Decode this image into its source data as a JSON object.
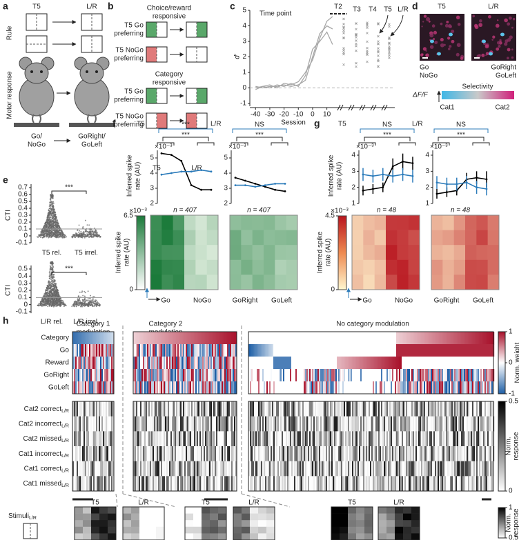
{
  "panels": {
    "a": {
      "label": "a",
      "columns": [
        "T5",
        "L/R"
      ],
      "rows": [
        "Rule",
        "Motor response"
      ],
      "left_response": [
        "Go/",
        "NoGo"
      ],
      "right_response": [
        "GoRight/",
        "GoLeft"
      ]
    },
    "b": {
      "label": "b",
      "groups": [
        {
          "title": [
            "Choice/reward",
            "responsive"
          ],
          "rows": [
            [
              "T5 Go",
              "preferring"
            ],
            [
              "T5 NoGo",
              "preferring"
            ]
          ]
        },
        {
          "title": [
            "Category",
            "responsive"
          ],
          "rows": [
            [
              "T5 Go",
              "preferring"
            ],
            [
              "T5 NoGo",
              "preferring"
            ]
          ]
        }
      ],
      "columns": [
        "T5",
        "L/R"
      ]
    },
    "c": {
      "type": "line",
      "label": "c",
      "annotation": "Time point",
      "time_points": [
        "T2",
        "T3",
        "T4",
        "T5",
        "L/R"
      ],
      "xlabel": "Session",
      "ylabel": "d′",
      "color": "#a8a8a8",
      "x": [
        -40,
        -35,
        -30,
        -25,
        -20,
        -15,
        -10,
        -5,
        0,
        5,
        10,
        14
      ],
      "series": [
        {
          "values": [
            0.1,
            0,
            0.1,
            0.1,
            0.2,
            0.1,
            0.2,
            0.5,
            2.0,
            3.5,
            4.0,
            3.8
          ]
        },
        {
          "values": [
            0,
            0.1,
            0,
            0.2,
            0.1,
            0.3,
            0.1,
            0.8,
            2.5,
            3.0,
            3.6,
            2.8
          ]
        },
        {
          "values": [
            -0.1,
            0.1,
            0.2,
            0,
            0.3,
            0.2,
            0.4,
            1.0,
            1.8,
            3.2,
            4.3,
            4.6
          ]
        }
      ],
      "xlim": [
        -44,
        16
      ],
      "ylim": [
        -1,
        5
      ],
      "xticks": [
        -40,
        -30,
        -20,
        -10,
        0,
        10
      ],
      "yticks": [
        -1,
        0,
        1,
        2,
        3,
        4,
        5
      ]
    },
    "d": {
      "label": "d",
      "images": [
        "T5",
        "L/R"
      ],
      "left_labels": [
        "Go",
        "NoGo"
      ],
      "right_labels": [
        "GoRight",
        "GoLeft"
      ],
      "colorbar_title": "Selectivity",
      "colorbar_axis": "ΔF/F",
      "colorbar_ends": [
        "Cat1",
        "Cat2"
      ]
    },
    "e": {
      "label": "e",
      "plots": [
        {
          "ylabel": "CTI",
          "ylim": [
            -0.1,
            0.75
          ],
          "yticks": [
            -0.1,
            0,
            0.1,
            0.2,
            0.3,
            0.4,
            0.5,
            0.6,
            0.7
          ],
          "significance": "***",
          "categories": [
            "T5 rel.",
            "T5 irrel."
          ]
        },
        {
          "ylabel": "CTI",
          "ylim": [
            -0.12,
            0.55
          ],
          "yticks": [
            -0.1,
            0,
            0.1,
            0.2,
            0.3,
            0.4,
            0.5
          ],
          "significance": "***",
          "categories": [
            "L/R rel.",
            "L/R irrel."
          ]
        }
      ]
    },
    "f": {
      "label": "f",
      "ylabel": [
        "Inferred spike",
        "rate (AU)"
      ],
      "colorbar": {
        "lim": [
          0,
          6.5
        ],
        "ticks": [
          0,
          6.5
        ],
        "multiplier": "×10⁻³",
        "label": [
          "Inferred spike",
          "rate (AU)"
        ],
        "color": "#1b7a3a"
      },
      "plots": [
        {
          "title": "T5",
          "significance": [
            "***",
            "***"
          ],
          "multiplier": "×10⁻³",
          "ylim": [
            2,
            5.5
          ],
          "yticks": [
            2,
            3,
            4,
            5
          ],
          "n": "n = 407",
          "heatmap_labels": [
            "Go",
            "NoGo"
          ],
          "series": [
            {
              "color": "#000000",
              "values": [
                5.3,
                5.2,
                4.8,
                3.2,
                2.9,
                2.9
              ]
            },
            {
              "color": "#2b7bba",
              "values": [
                3.9,
                4.0,
                4.1,
                4.1,
                4.2,
                4.1
              ]
            }
          ]
        },
        {
          "title": "L/R",
          "significance": [
            "NS",
            "***"
          ],
          "multiplier": "×10⁻³",
          "ylim": [
            2,
            5.5
          ],
          "yticks": [
            2,
            3,
            4,
            5
          ],
          "n": "n = 407",
          "heatmap_labels": [
            "GoRight",
            "GoLeft"
          ],
          "series": [
            {
              "color": "#000000",
              "values": [
                3.7,
                3.5,
                3.3,
                3.1,
                2.9,
                2.8
              ]
            },
            {
              "color": "#2b7bba",
              "values": [
                3.2,
                3.2,
                3.1,
                3.2,
                3.3,
                3.3
              ]
            }
          ]
        }
      ]
    },
    "g": {
      "label": "g",
      "ylabel": [
        "Inferred spike",
        "rate (AU)"
      ],
      "colorbar": {
        "lim": [
          0,
          4.5
        ],
        "ticks": [
          0,
          4.5
        ],
        "multiplier": "×10⁻³",
        "label": [
          "Inferred spike",
          "rate (AU)"
        ],
        "color": "#b8141e"
      },
      "plots": [
        {
          "title": "T5",
          "significance": [
            "NS",
            "***"
          ],
          "multiplier": "×10⁻³",
          "ylim": [
            1,
            4.3
          ],
          "yticks": [
            1,
            2,
            3,
            4
          ],
          "n": "n = 48",
          "heatmap_labels": [
            "Go",
            "NoGo"
          ],
          "series": [
            {
              "color": "#000000",
              "values": [
                1.8,
                1.9,
                2.0,
                3.3,
                3.6,
                3.5
              ],
              "errors": [
                0.3,
                0.3,
                0.3,
                0.5,
                0.5,
                0.4
              ]
            },
            {
              "color": "#2b7bba",
              "values": [
                2.8,
                2.7,
                2.8,
                2.7,
                2.8,
                2.7
              ],
              "errors": [
                0.4,
                0.4,
                0.4,
                0.4,
                0.4,
                0.4
              ]
            }
          ]
        },
        {
          "title": "L/R",
          "significance": [
            "NS",
            "***"
          ],
          "multiplier": "×10⁻³",
          "ylim": [
            1,
            4.3
          ],
          "yticks": [
            1,
            2,
            3,
            4
          ],
          "n": "n = 48",
          "heatmap_labels": [
            "GoRight",
            "GoLeft"
          ],
          "series": [
            {
              "color": "#000000",
              "values": [
                1.6,
                1.7,
                1.8,
                2.5,
                2.6,
                2.5
              ],
              "errors": [
                0.3,
                0.3,
                0.3,
                0.4,
                0.4,
                0.5
              ]
            },
            {
              "color": "#2b7bba",
              "values": [
                2.3,
                2.2,
                2.2,
                2.3,
                2.0,
                1.9
              ],
              "errors": [
                0.4,
                0.4,
                0.4,
                0.4,
                0.4,
                0.4
              ]
            }
          ]
        }
      ]
    },
    "h": {
      "label": "h",
      "groups": [
        [
          "Category 1",
          "modulation"
        ],
        [
          "Category 2",
          "modulation"
        ],
        [
          "No category modulation"
        ]
      ],
      "weight_rows": [
        "Category",
        "Go",
        "Reward",
        "GoRight",
        "GoLeft"
      ],
      "weight_colorbar": {
        "lim": [
          -1,
          1
        ],
        "ticks": [
          -1,
          0,
          1
        ],
        "label": [
          "Norm. weight"
        ]
      },
      "response_rows": [
        {
          "text": "Cat2 correct",
          "sub": "L/R"
        },
        {
          "text": "Cat2 incorrect",
          "sub": "L/R"
        },
        {
          "text": "Cat2 missed",
          "sub": "L/R"
        },
        {
          "text": "Cat1 incorrect",
          "sub": "L/R"
        },
        {
          "text": "Cat1 correct",
          "sub": "L/R"
        },
        {
          "text": "Cat1 missed",
          "sub": "L/R"
        }
      ],
      "response_colorbar": {
        "lim": [
          0,
          0.5
        ],
        "ticks": [
          0,
          0.5
        ],
        "label": [
          "Norm.",
          "response"
        ]
      },
      "stimuli": {
        "text": "Stimuli",
        "sub": "L/R"
      },
      "stimulus_panels": [
        "T5",
        "L/R",
        "T5",
        "L/R",
        "T5",
        "L/R"
      ],
      "stimulus_colorbar": {
        "lim": [
          0.5,
          1
        ],
        "ticks": [
          0.5,
          1
        ],
        "label": [
          "Norm.",
          "response"
        ]
      }
    }
  }
}
